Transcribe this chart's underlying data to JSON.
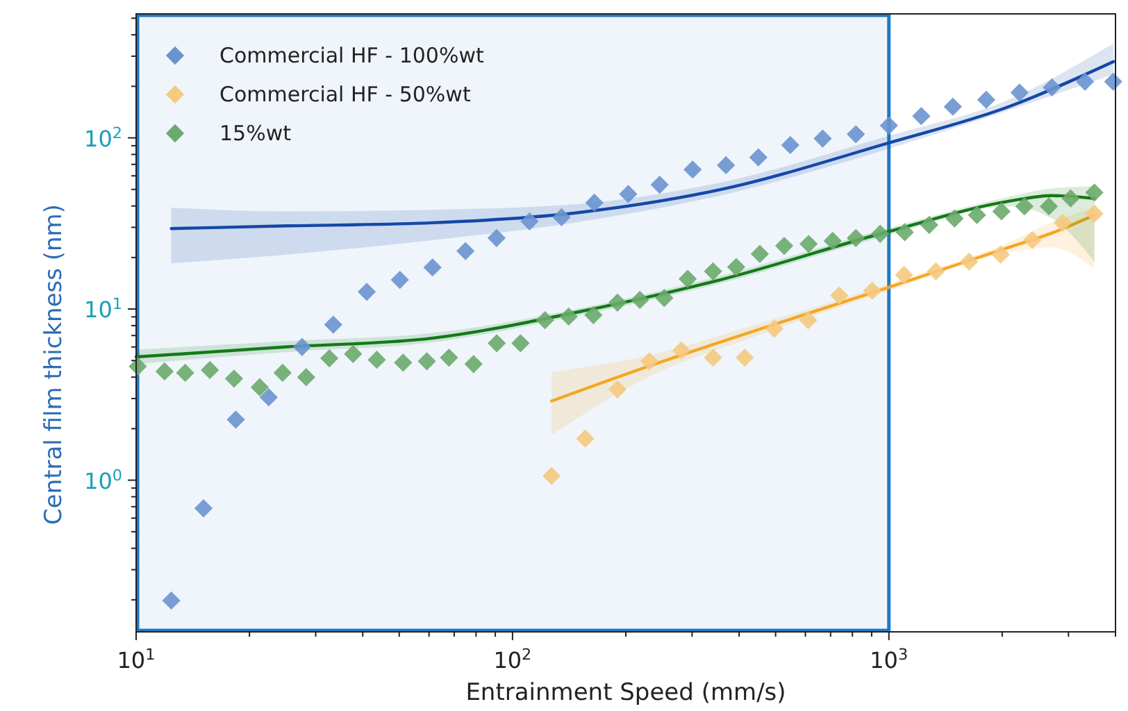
{
  "chart_data": {
    "type": "scatter",
    "xlabel": "Entrainment Speed (mm/s)",
    "ylabel": "Central film thickness (nm)",
    "log": "xy",
    "marker": "diamond",
    "legend": "top left",
    "grid": false,
    "xlim": [
      10,
      4000
    ],
    "ylim": [
      0.13,
      530
    ],
    "xticks": [
      {
        "value": 10,
        "label": "10$^{1}$"
      },
      {
        "value": 20,
        "label": null
      },
      {
        "value": 30,
        "label": null
      },
      {
        "value": 40,
        "label": null
      },
      {
        "value": 50,
        "label": null
      },
      {
        "value": 60,
        "label": null
      },
      {
        "value": 70,
        "label": null
      },
      {
        "value": 80,
        "label": null
      },
      {
        "value": 90,
        "label": null
      },
      {
        "value": 100,
        "label": "10$^{2}$"
      },
      {
        "value": 200,
        "label": null
      },
      {
        "value": 300,
        "label": null
      },
      {
        "value": 400,
        "label": null
      },
      {
        "value": 500,
        "label": null
      },
      {
        "value": 600,
        "label": null
      },
      {
        "value": 700,
        "label": null
      },
      {
        "value": 800,
        "label": null
      },
      {
        "value": 900,
        "label": null
      },
      {
        "value": 1000,
        "label": "10$^{3}$"
      },
      {
        "value": 2000,
        "label": null
      },
      {
        "value": 3000,
        "label": null
      },
      {
        "value": 4000,
        "label": null
      }
    ],
    "yticks": [
      {
        "value": 0.2,
        "label": null
      },
      {
        "value": 0.3,
        "label": null
      },
      {
        "value": 0.4,
        "label": null
      },
      {
        "value": 0.5,
        "label": null
      },
      {
        "value": 0.6,
        "label": null
      },
      {
        "value": 0.7,
        "label": null
      },
      {
        "value": 0.8,
        "label": null
      },
      {
        "value": 0.9,
        "label": null
      },
      {
        "value": 1,
        "label": "10$^{0}$"
      },
      {
        "value": 2,
        "label": null
      },
      {
        "value": 3,
        "label": null
      },
      {
        "value": 4,
        "label": null
      },
      {
        "value": 5,
        "label": null
      },
      {
        "value": 6,
        "label": null
      },
      {
        "value": 7,
        "label": null
      },
      {
        "value": 8,
        "label": null
      },
      {
        "value": 9,
        "label": null
      },
      {
        "value": 10,
        "label": "10$^{1}$"
      },
      {
        "value": 20,
        "label": null
      },
      {
        "value": 30,
        "label": null
      },
      {
        "value": 40,
        "label": null
      },
      {
        "value": 50,
        "label": null
      },
      {
        "value": 60,
        "label": null
      },
      {
        "value": 70,
        "label": null
      },
      {
        "value": 80,
        "label": null
      },
      {
        "value": 90,
        "label": null
      },
      {
        "value": 100,
        "label": "10$^{2}$"
      },
      {
        "value": 200,
        "label": null
      },
      {
        "value": 300,
        "label": null
      },
      {
        "value": 400,
        "label": null
      },
      {
        "value": 500,
        "label": null
      }
    ],
    "bands": [
      {
        "axis": "x",
        "from": 10,
        "to": 1000,
        "color": "#1f78c4"
      }
    ],
    "series": [
      {
        "name": "Commercial HF - 100%wt",
        "color": "#6a93cf",
        "x": [
          12.4,
          15.1,
          18.4,
          22.5,
          27.6,
          33.4,
          41.0,
          50.2,
          61.3,
          75.0,
          90.7,
          111,
          135,
          165,
          203,
          246,
          301,
          369,
          450,
          547,
          667,
          817,
          1000,
          1219,
          1479,
          1814,
          2224,
          2711,
          3319,
          3945
        ],
        "values": [
          0.198,
          0.685,
          2.26,
          3.05,
          6.0,
          8.1,
          12.6,
          14.8,
          17.5,
          21.8,
          26.0,
          32.5,
          34.4,
          41.8,
          47.0,
          53.2,
          65.3,
          69.2,
          76.9,
          90.8,
          99,
          105,
          118,
          134,
          152,
          167,
          184,
          197,
          213,
          213
        ]
      },
      {
        "name": "Commercial HF - 50%wt",
        "color": "#f5c97e",
        "x": [
          127,
          156,
          190,
          231,
          281,
          341,
          414,
          496,
          610,
          738,
          903,
          1097,
          1333,
          1633,
          1982,
          2405,
          2895,
          3516
        ],
        "values": [
          1.06,
          1.75,
          3.39,
          4.95,
          5.73,
          5.2,
          5.2,
          7.66,
          8.6,
          12.0,
          12.8,
          15.8,
          16.6,
          18.9,
          20.8,
          25.3,
          31.9,
          36.1
        ]
      },
      {
        "name": "15%wt",
        "color": "#6aaa6c",
        "x": [
          10.1,
          11.9,
          13.5,
          15.7,
          18.2,
          21.3,
          24.5,
          28.3,
          32.6,
          37.7,
          43.6,
          51.2,
          59.2,
          67.8,
          78.8,
          90.8,
          105,
          122,
          141,
          164,
          190,
          218,
          253,
          292,
          341,
          393,
          454,
          527,
          612,
          709,
          817,
          948,
          1102,
          1280,
          1494,
          1714,
          1991,
          2291,
          2661,
          3040,
          3516
        ],
        "values": [
          4.62,
          4.32,
          4.24,
          4.4,
          3.92,
          3.49,
          4.24,
          4.0,
          5.15,
          5.46,
          5.05,
          4.86,
          4.95,
          5.2,
          4.77,
          6.31,
          6.31,
          8.61,
          9.03,
          9.21,
          10.9,
          11.3,
          11.6,
          15.0,
          16.6,
          17.6,
          21.0,
          23.4,
          24.0,
          25.0,
          26.0,
          27.5,
          28.1,
          31.0,
          33.8,
          35.4,
          37.2,
          39.8,
          39.8,
          44.3,
          47.9
        ]
      },
      {
        "type": "line",
        "marker": "none",
        "color": "#1448a8",
        "x": [
          12.4,
          25.2,
          61.0,
          148,
          356,
          1000,
          2080,
          3950
        ],
        "values": [
          29.5,
          30.6,
          31.9,
          36.5,
          49.8,
          93.5,
          152,
          279
        ],
        "lower": [
          18.5,
          20.8,
          25.2,
          32.1,
          46.0,
          86.5,
          145,
          235
        ],
        "upper": [
          39.1,
          37.2,
          38.0,
          41.0,
          54.8,
          103,
          167,
          356
        ]
      },
      {
        "type": "line",
        "marker": "none",
        "color": "#f5a623",
        "x": [
          127,
          229,
          444,
          1000,
          2080,
          2711,
          3516
        ],
        "values": [
          2.9,
          4.62,
          7.51,
          13.4,
          22.9,
          27.8,
          35.4
        ],
        "lower": [
          1.84,
          4.0,
          6.95,
          12.8,
          21.4,
          22.9,
          17.1
        ],
        "upper": [
          4.29,
          5.35,
          8.12,
          14.1,
          24.5,
          32.1,
          39.1
        ]
      },
      {
        "type": "line",
        "marker": "none",
        "color": "#137a17",
        "x": [
          10,
          25.2,
          61.0,
          148,
          356,
          1000,
          2080,
          2711,
          3516
        ],
        "values": [
          5.25,
          6.01,
          6.75,
          9.57,
          14.8,
          28.4,
          42.6,
          46.0,
          44.3
        ],
        "lower": [
          4.77,
          5.61,
          6.37,
          9.12,
          14.1,
          27.0,
          39.8,
          33.8,
          18.9
        ],
        "upper": [
          5.78,
          6.5,
          7.23,
          10.0,
          15.6,
          29.8,
          45.2,
          50.7,
          52.2
        ]
      }
    ]
  }
}
